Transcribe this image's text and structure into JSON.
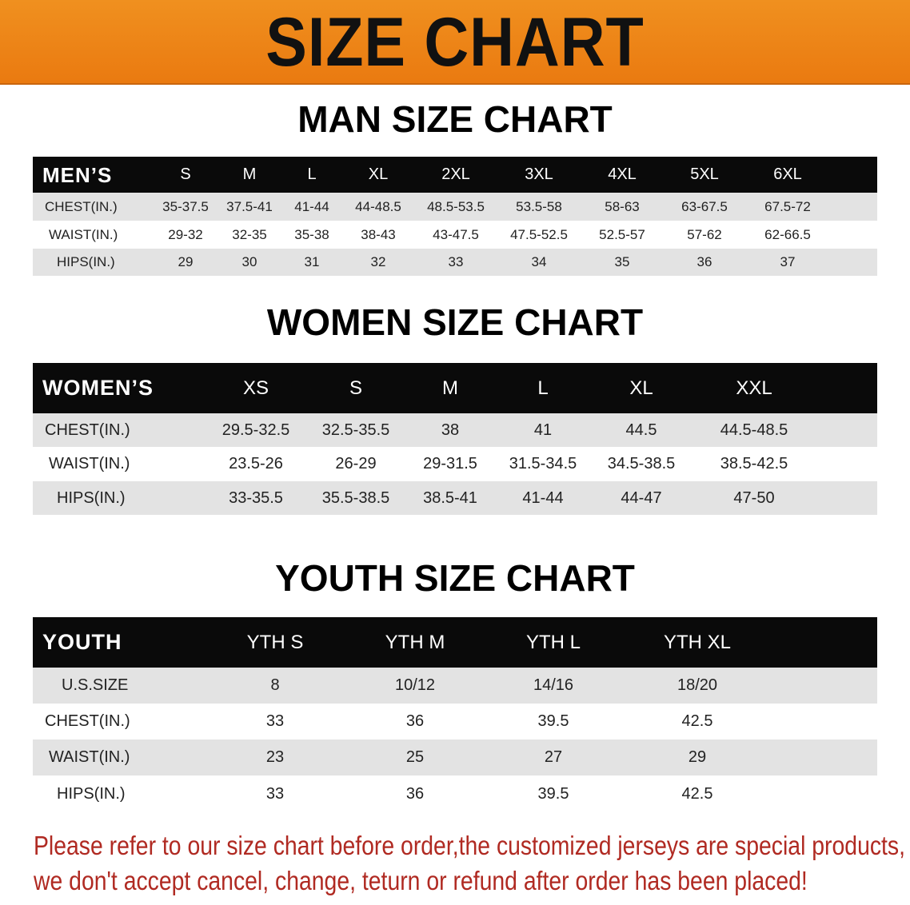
{
  "banner_title": "SIZE CHART",
  "men": {
    "title": "MAN SIZE CHART",
    "corner": "MEN’S",
    "sizes": [
      "S",
      "M",
      "L",
      "XL",
      "2XL",
      "3XL",
      "4XL",
      "5XL",
      "6XL"
    ],
    "rows": [
      {
        "label": "CHEST(IN.)",
        "values": [
          "35-37.5",
          "37.5-41",
          "41-44",
          "44-48.5",
          "48.5-53.5",
          "53.5-58",
          "58-63",
          "63-67.5",
          "67.5-72"
        ]
      },
      {
        "label": "WAIST(IN.)",
        "values": [
          "29-32",
          "32-35",
          "35-38",
          "38-43",
          "43-47.5",
          "47.5-52.5",
          "52.5-57",
          "57-62",
          "62-66.5"
        ]
      },
      {
        "label": "HIPS(IN.)",
        "values": [
          "29",
          "30",
          "31",
          "32",
          "33",
          "34",
          "35",
          "36",
          "37"
        ]
      }
    ]
  },
  "women": {
    "title": "WOMEN SIZE CHART",
    "corner": "WOMEN’S",
    "sizes": [
      "XS",
      "S",
      "M",
      "L",
      "XL",
      "XXL"
    ],
    "rows": [
      {
        "label": "CHEST(IN.)",
        "values": [
          "29.5-32.5",
          "32.5-35.5",
          "38",
          "41",
          "44.5",
          "44.5-48.5"
        ]
      },
      {
        "label": "WAIST(IN.)",
        "values": [
          "23.5-26",
          "26-29",
          "29-31.5",
          "31.5-34.5",
          "34.5-38.5",
          "38.5-42.5"
        ]
      },
      {
        "label": "HIPS(IN.)",
        "values": [
          "33-35.5",
          "35.5-38.5",
          "38.5-41",
          "41-44",
          "44-47",
          "47-50"
        ]
      }
    ]
  },
  "youth": {
    "title": "YOUTH SIZE CHART",
    "corner": "YOUTH",
    "sizes": [
      "YTH S",
      "YTH M",
      "YTH L",
      "YTH XL"
    ],
    "rows": [
      {
        "label": "U.S.SIZE",
        "values": [
          "8",
          "10/12",
          "14/16",
          "18/20"
        ]
      },
      {
        "label": "CHEST(IN.)",
        "values": [
          "33",
          "36",
          "39.5",
          "42.5"
        ]
      },
      {
        "label": "WAIST(IN.)",
        "values": [
          "23",
          "25",
          "27",
          "29"
        ]
      },
      {
        "label": "HIPS(IN.)",
        "values": [
          "33",
          "36",
          "39.5",
          "42.5"
        ]
      }
    ]
  },
  "notice": [
    "Please refer to our size chart before order,the customized jerseys are special products,",
    "we don't accept cancel, change, teturn or refund after order has been placed!"
  ],
  "colors": {
    "banner": "#ef8a1a",
    "header_row": "#0a0a0a",
    "stripe": "#e3e3e3",
    "notice": "#b02a22"
  }
}
